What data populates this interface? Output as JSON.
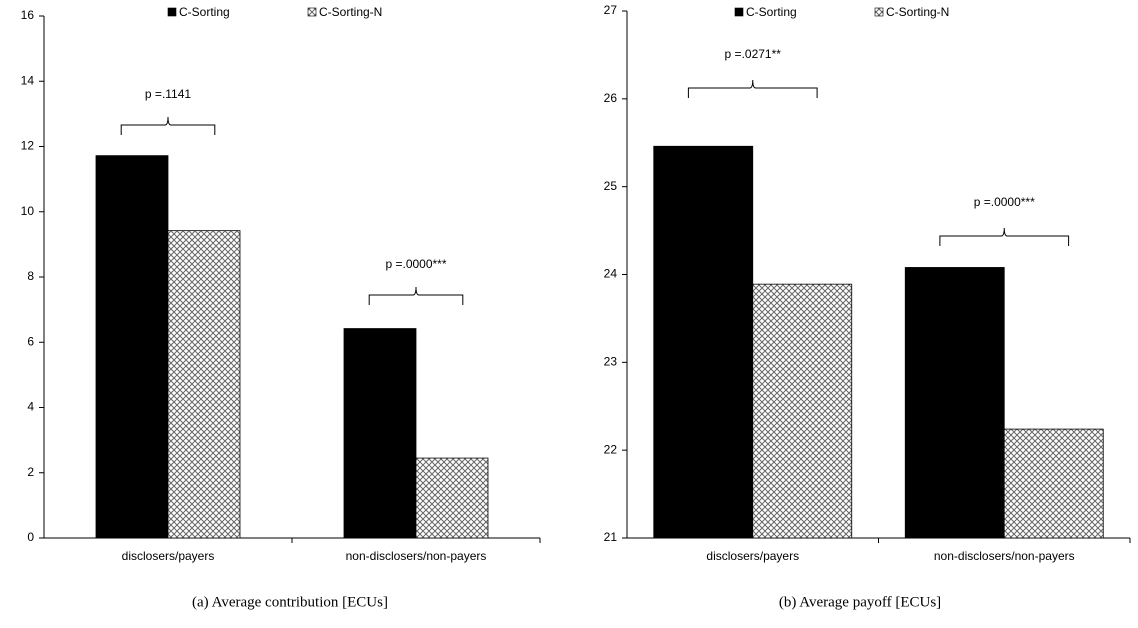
{
  "chart_data": [
    {
      "type": "bar",
      "title": "(a) Average contribution [ECUs]",
      "categories": [
        "disclosers/payers",
        "non-disclosers/non-payers"
      ],
      "series": [
        {
          "name": "C-Sorting",
          "color": "#000000",
          "values": [
            11.72,
            6.42
          ]
        },
        {
          "name": "C-Sorting-N",
          "color": "hatch",
          "values": [
            9.42,
            2.45
          ]
        }
      ],
      "annotations": [
        "p =.1141",
        "p =.0000***"
      ],
      "ylim": [
        0,
        16
      ],
      "yticks": [
        0,
        2,
        4,
        6,
        8,
        10,
        12,
        14,
        16
      ],
      "grid": false
    },
    {
      "type": "bar",
      "title": "(b) Average payoff [ECUs]",
      "categories": [
        "disclosers/payers",
        "non-disclosers/non-payers"
      ],
      "series": [
        {
          "name": "C-Sorting",
          "color": "#000000",
          "values": [
            25.46,
            24.08
          ]
        },
        {
          "name": "C-Sorting-N",
          "color": "hatch",
          "values": [
            23.89,
            22.24
          ]
        }
      ],
      "annotations": [
        "p =.0271**",
        "p =.0000***"
      ],
      "ylim": [
        21,
        27
      ],
      "yticks": [
        21,
        22,
        23,
        24,
        25,
        26,
        27
      ],
      "grid": false
    }
  ]
}
